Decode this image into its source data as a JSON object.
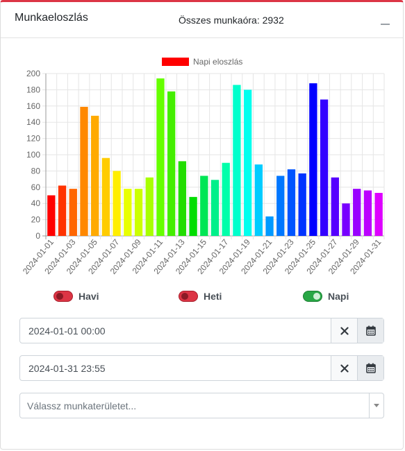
{
  "card": {
    "title": "Munkaeloszlás",
    "total_label": "Összes munkaóra: 2932"
  },
  "chart_data": {
    "type": "bar",
    "legend": "Napi eloszlás",
    "legend_color": "#ff0000",
    "legend_position": "top-center",
    "grid": true,
    "ylim": [
      0,
      200
    ],
    "yticks": [
      0,
      20,
      40,
      60,
      80,
      100,
      120,
      140,
      160,
      180,
      200
    ],
    "categories": [
      "2024-01-01",
      "2024-01-02",
      "2024-01-03",
      "2024-01-04",
      "2024-01-05",
      "2024-01-06",
      "2024-01-07",
      "2024-01-08",
      "2024-01-09",
      "2024-01-10",
      "2024-01-11",
      "2024-01-12",
      "2024-01-13",
      "2024-01-14",
      "2024-01-15",
      "2024-01-16",
      "2024-01-17",
      "2024-01-18",
      "2024-01-19",
      "2024-01-20",
      "2024-01-21",
      "2024-01-22",
      "2024-01-23",
      "2024-01-24",
      "2024-01-25",
      "2024-01-26",
      "2024-01-27",
      "2024-01-28",
      "2024-01-29",
      "2024-01-30",
      "2024-01-31"
    ],
    "xtick_labels": [
      "2024-01-01",
      "2024-01-03",
      "2024-01-05",
      "2024-01-07",
      "2024-01-09",
      "2024-01-11",
      "2024-01-13",
      "2024-01-15",
      "2024-01-17",
      "2024-01-19",
      "2024-01-21",
      "2024-01-23",
      "2024-01-25",
      "2024-01-27",
      "2024-01-29",
      "2024-01-31"
    ],
    "values": [
      50,
      62,
      58,
      159,
      148,
      96,
      80,
      58,
      58,
      72,
      194,
      178,
      92,
      48,
      74,
      69,
      90,
      186,
      180,
      88,
      24,
      74,
      82,
      77,
      188,
      168,
      72,
      40,
      58,
      56,
      53
    ],
    "colors": [
      "#ff0000",
      "#ff3300",
      "#ff6600",
      "#ff8800",
      "#ffaa00",
      "#ffcc00",
      "#ffee00",
      "#e8ff00",
      "#ccff00",
      "#a8ff00",
      "#66ff00",
      "#44ee00",
      "#22dd00",
      "#00dd00",
      "#00e655",
      "#00f08a",
      "#00ffaa",
      "#00ffcc",
      "#00ffee",
      "#00ccff",
      "#0099ff",
      "#0077ff",
      "#0055ff",
      "#0033ff",
      "#0000ff",
      "#3300ff",
      "#5500ff",
      "#7700ff",
      "#9900ff",
      "#bb00ff",
      "#dd00ff"
    ]
  },
  "toggles": [
    {
      "label": "Havi",
      "state": "off"
    },
    {
      "label": "Heti",
      "state": "off"
    },
    {
      "label": "Napi",
      "state": "on"
    }
  ],
  "date_from": {
    "value": "2024-01-01 00:00"
  },
  "date_to": {
    "value": "2024-01-31 23:55"
  },
  "workarea_select": {
    "placeholder": "Válassz munkaterületet..."
  }
}
